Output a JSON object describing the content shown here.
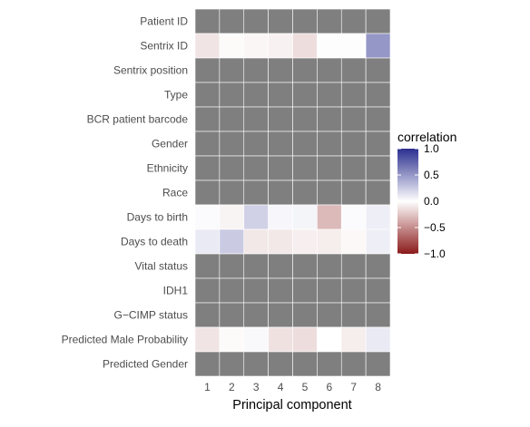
{
  "chart_data": {
    "type": "heatmap",
    "title": "",
    "xlabel": "Principal component",
    "ylabel": "",
    "x": [
      "1",
      "2",
      "3",
      "4",
      "5",
      "6",
      "7",
      "8"
    ],
    "y": [
      "Patient ID",
      "Sentrix ID",
      "Sentrix position",
      "Type",
      "BCR patient barcode",
      "Gender",
      "Ethnicity",
      "Race",
      "Days to birth",
      "Days to death",
      "Vital status",
      "IDH1",
      "G−CIMP status",
      "Predicted Male Probability",
      "Predicted Gender"
    ],
    "values": [
      [
        null,
        null,
        null,
        null,
        null,
        null,
        null,
        null
      ],
      [
        -0.12,
        -0.02,
        -0.04,
        -0.06,
        -0.15,
        0.01,
        0.01,
        0.5
      ],
      [
        null,
        null,
        null,
        null,
        null,
        null,
        null,
        null
      ],
      [
        null,
        null,
        null,
        null,
        null,
        null,
        null,
        null
      ],
      [
        null,
        null,
        null,
        null,
        null,
        null,
        null,
        null
      ],
      [
        null,
        null,
        null,
        null,
        null,
        null,
        null,
        null
      ],
      [
        null,
        null,
        null,
        null,
        null,
        null,
        null,
        null
      ],
      [
        null,
        null,
        null,
        null,
        null,
        null,
        null,
        null
      ],
      [
        0.02,
        -0.05,
        0.22,
        0.04,
        0.05,
        -0.3,
        0.02,
        0.08
      ],
      [
        0.1,
        0.25,
        -0.1,
        -0.1,
        -0.07,
        -0.08,
        -0.03,
        0.08
      ],
      [
        null,
        null,
        null,
        null,
        null,
        null,
        null,
        null
      ],
      [
        null,
        null,
        null,
        null,
        null,
        null,
        null,
        null
      ],
      [
        null,
        null,
        null,
        null,
        null,
        null,
        null,
        null
      ],
      [
        -0.12,
        -0.02,
        0.03,
        -0.13,
        -0.15,
        0.0,
        -0.08,
        0.1
      ],
      [
        null,
        null,
        null,
        null,
        null,
        null,
        null,
        null
      ]
    ],
    "value_range": [
      -1,
      1
    ],
    "na_color": "#7f7f7f",
    "legend": {
      "title": "correlation",
      "position": "right",
      "ticks": [
        1.0,
        0.5,
        0.0,
        -0.5,
        -1.0
      ],
      "tick_labels": [
        "1.0",
        "0.5",
        "0.0",
        "−0.5",
        "−1.0"
      ],
      "low_color": "#8b1a1a",
      "mid_color": "#ffffff",
      "high_color": "#2b2f8f"
    },
    "grid": true
  }
}
